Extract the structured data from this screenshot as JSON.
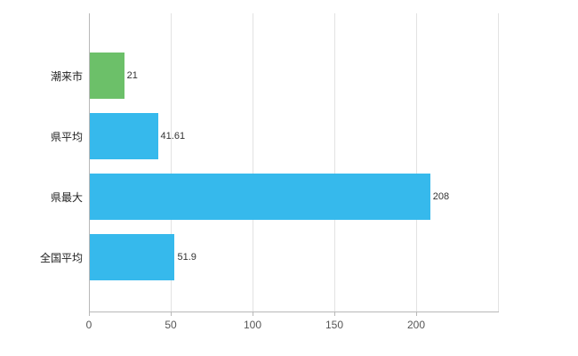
{
  "chart_data": {
    "type": "bar",
    "orientation": "horizontal",
    "title": "",
    "xlabel": "",
    "ylabel": "",
    "categories": [
      "潮来市",
      "県平均",
      "県最大",
      "全国平均"
    ],
    "values": [
      21,
      41.61,
      208,
      51.9
    ],
    "value_labels": [
      "21",
      "41.61",
      "208",
      "51.9"
    ],
    "bar_colors": [
      "#6cc069",
      "#36b9ec",
      "#36b9ec",
      "#36b9ec"
    ],
    "xlim": [
      0,
      250
    ],
    "x_ticks": [
      0,
      50,
      100,
      150,
      200
    ],
    "grid_lines": [
      50,
      100,
      150,
      200,
      250
    ],
    "grid": true,
    "legend_position": "none",
    "colors": {
      "background": "#ffffff",
      "grid": "#e2e2e2",
      "axis": "#b8b8b8",
      "tick_text": "#555555",
      "value_text": "#333333",
      "category_text": "#222222"
    }
  }
}
